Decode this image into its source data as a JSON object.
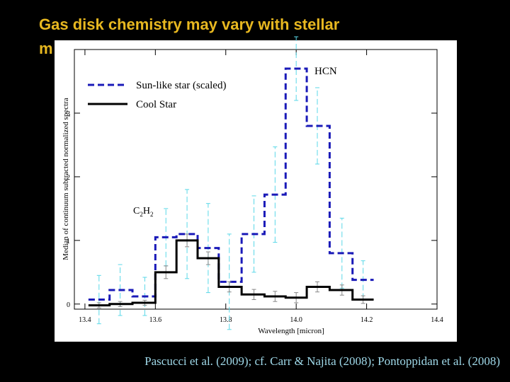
{
  "chart_data": {
    "type": "step",
    "title_lines": [
      "Gas disk chemistry may vary with stellar",
      "m"
    ],
    "footer": "Pascucci  et al. (2009); cf. Carr & Najita (2008); Pontoppidan et al. (2008)",
    "x_label": "Wavelength [micron]",
    "y_label": "Median of continuum subtracted normalized spectra",
    "annotation_hcn": "HCN",
    "annotation_c2h2": [
      "C",
      "2",
      "H",
      "2"
    ],
    "x": [
      13.44,
      13.5,
      13.57,
      13.63,
      13.69,
      13.75,
      13.81,
      13.88,
      13.94,
      14.0,
      14.06,
      14.13,
      14.19,
      14.25
    ],
    "series": [
      {
        "name": "Sun-like star (scaled)",
        "color": "#1a1ab8",
        "dash": true,
        "error_color": "#5ad8e8",
        "values": [
          0.07,
          0.22,
          0.12,
          1.05,
          1.1,
          0.88,
          0.35,
          1.1,
          1.72,
          3.7,
          2.8,
          0.8,
          0.38,
          null
        ],
        "errors": [
          0.38,
          0.4,
          0.3,
          0.45,
          0.7,
          0.7,
          0.75,
          0.6,
          0.75,
          0.5,
          0.6,
          0.55,
          0.3,
          null
        ]
      },
      {
        "name": "Cool Star",
        "color": "#000000",
        "dash": false,
        "error_color": "#888888",
        "values": [
          -0.02,
          0.0,
          0.02,
          0.5,
          1.0,
          0.72,
          0.27,
          0.15,
          0.12,
          0.1,
          0.27,
          0.22,
          0.07,
          null
        ],
        "errors": [
          0.04,
          0.04,
          0.04,
          0.1,
          0.1,
          0.1,
          0.08,
          0.08,
          0.08,
          0.08,
          0.08,
          0.08,
          0.06,
          null
        ]
      }
    ],
    "xlim": [
      13.37,
      14.4
    ],
    "ylim": [
      -0.08,
      4.0
    ],
    "xticks": [
      13.4,
      13.6,
      13.8,
      {
        "value": 14,
        "label": "14.0"
      },
      14.2,
      14.4
    ],
    "yticks": [
      0,
      1,
      2,
      3
    ]
  }
}
